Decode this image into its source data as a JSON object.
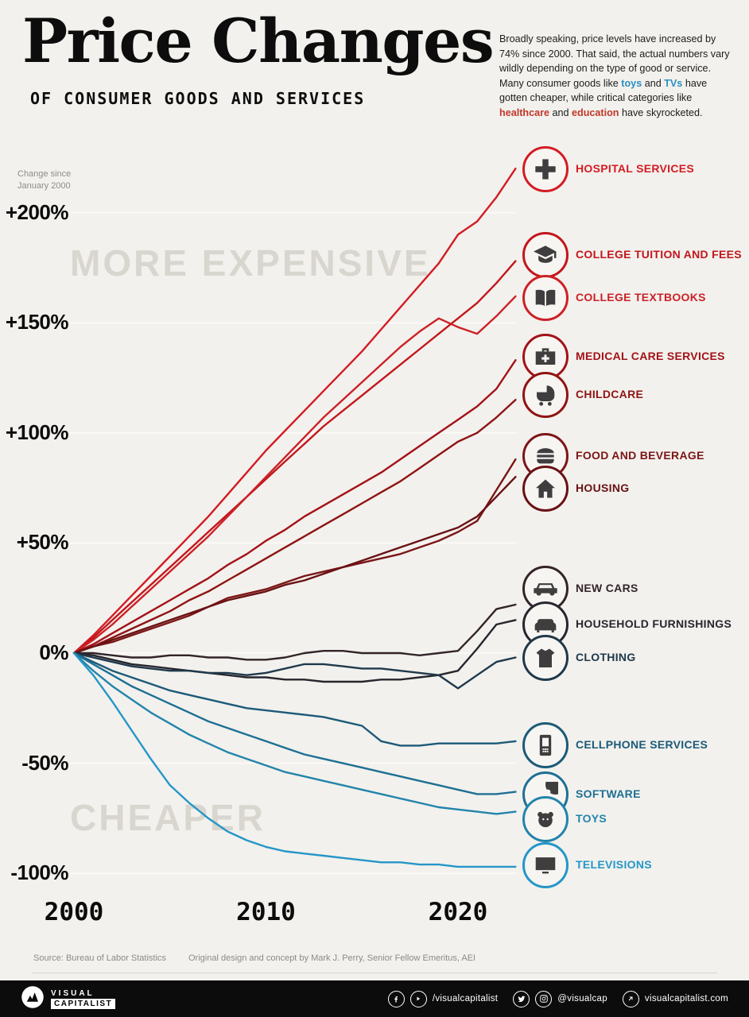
{
  "page": {
    "background": "#f2f1ed"
  },
  "header": {
    "title": "Price Changes",
    "subtitle": "OF CONSUMER GOODS AND SERVICES",
    "intro_segments": [
      {
        "text": "Broadly speaking, price levels have increased by 74% since 2000. That said, the actual numbers vary wildly depending on the type of good or service. Many consumer goods like "
      },
      {
        "text": "toys",
        "color": "#2a8fc2"
      },
      {
        "text": " and "
      },
      {
        "text": "TVs",
        "color": "#2a8fc2"
      },
      {
        "text": " have gotten cheaper, while critical categories like "
      },
      {
        "text": "healthcare",
        "color": "#c0382b"
      },
      {
        "text": " and "
      },
      {
        "text": "education",
        "color": "#c0382b"
      },
      {
        "text": " have skyrocketed."
      }
    ]
  },
  "chart": {
    "axis_note": "Change since\nJanuary 2000",
    "watermark_more": "MORE EXPENSIVE",
    "watermark_less": "CHEAPER"
  },
  "chart_data": {
    "type": "line",
    "title": "Price changes of consumer goods and services since January 2000",
    "ylabel": "Change since January 2000 (%)",
    "xlim": [
      2000,
      2023
    ],
    "ylim": [
      -100,
      230
    ],
    "grid": true,
    "legend_position": "right",
    "x": [
      2000,
      2001,
      2002,
      2003,
      2004,
      2005,
      2006,
      2007,
      2008,
      2009,
      2010,
      2011,
      2012,
      2013,
      2014,
      2015,
      2016,
      2017,
      2018,
      2019,
      2020,
      2021,
      2022,
      2023
    ],
    "y_ticks": [
      {
        "label": "+200%",
        "value": 200
      },
      {
        "label": "+150%",
        "value": 150
      },
      {
        "label": "+100%",
        "value": 100
      },
      {
        "label": "+50%",
        "value": 50
      },
      {
        "label": "0%",
        "value": 0
      },
      {
        "label": "-50%",
        "value": -50
      },
      {
        "label": "-100%",
        "value": -100
      }
    ],
    "x_ticks": [
      {
        "label": "2000",
        "value": 2000
      },
      {
        "label": "2010",
        "value": 2010
      },
      {
        "label": "2020",
        "value": 2020
      }
    ],
    "series": [
      {
        "id": "hospital-services",
        "name": "HOSPITAL SERVICES",
        "color": "#d31c23",
        "values": [
          0,
          8,
          17,
          26,
          35,
          44,
          53,
          62,
          72,
          82,
          92,
          101,
          110,
          119,
          128,
          137,
          147,
          157,
          167,
          177,
          190,
          196,
          207,
          220
        ]
      },
      {
        "id": "college-tuition",
        "name": "COLLEGE TUITION AND FEES",
        "color": "#c3161c",
        "values": [
          0,
          7,
          15,
          23,
          31,
          39,
          47,
          55,
          63,
          71,
          79,
          87,
          95,
          103,
          110,
          117,
          124,
          131,
          138,
          145,
          152,
          159,
          168,
          178
        ]
      },
      {
        "id": "college-textbooks",
        "name": "COLLEGE TEXTBOOKS",
        "color": "#cc2127",
        "values": [
          0,
          6,
          13,
          21,
          29,
          37,
          45,
          53,
          62,
          71,
          80,
          89,
          98,
          107,
          115,
          123,
          131,
          139,
          146,
          152,
          148,
          145,
          153,
          162
        ]
      },
      {
        "id": "medical-care-services",
        "name": "MEDICAL CARE SERVICES",
        "color": "#a31218",
        "values": [
          0,
          4,
          9,
          14,
          19,
          24,
          29,
          34,
          40,
          45,
          51,
          56,
          62,
          67,
          72,
          77,
          82,
          88,
          94,
          100,
          106,
          112,
          120,
          133
        ]
      },
      {
        "id": "childcare",
        "name": "CHILDCARE",
        "color": "#8f1414",
        "values": [
          0,
          3,
          7,
          11,
          15,
          19,
          24,
          28,
          33,
          38,
          43,
          48,
          53,
          58,
          63,
          68,
          73,
          78,
          84,
          90,
          96,
          100,
          107,
          115
        ]
      },
      {
        "id": "food-and-beverage",
        "name": "FOOD AND BEVERAGE",
        "color": "#7c1517",
        "values": [
          0,
          3,
          5,
          8,
          11,
          14,
          17,
          21,
          25,
          27,
          29,
          32,
          35,
          37,
          39,
          41,
          43,
          45,
          48,
          51,
          55,
          60,
          74,
          88
        ]
      },
      {
        "id": "housing",
        "name": "HOUSING",
        "color": "#691114",
        "values": [
          0,
          3,
          6,
          9,
          12,
          15,
          18,
          21,
          24,
          26,
          28,
          31,
          33,
          36,
          39,
          42,
          45,
          48,
          51,
          54,
          57,
          62,
          71,
          80
        ]
      },
      {
        "id": "new-cars",
        "name": "NEW CARS",
        "color": "#33242a",
        "values": [
          0,
          0,
          -1,
          -2,
          -2,
          -1,
          -1,
          -2,
          -2,
          -3,
          -3,
          -2,
          0,
          1,
          1,
          0,
          0,
          0,
          -1,
          0,
          1,
          10,
          20,
          22
        ]
      },
      {
        "id": "household-furnishings",
        "name": "HOUSEHOLD FURNISHINGS",
        "color": "#27262e",
        "values": [
          0,
          -1,
          -3,
          -5,
          -6,
          -7,
          -8,
          -9,
          -10,
          -11,
          -11,
          -12,
          -12,
          -13,
          -13,
          -13,
          -12,
          -12,
          -11,
          -10,
          -8,
          2,
          13,
          15
        ]
      },
      {
        "id": "clothing",
        "name": "CLOTHING",
        "color": "#20394b",
        "values": [
          0,
          -2,
          -4,
          -6,
          -7,
          -8,
          -8,
          -9,
          -9,
          -10,
          -9,
          -7,
          -5,
          -5,
          -6,
          -7,
          -7,
          -8,
          -9,
          -10,
          -16,
          -10,
          -4,
          -2
        ]
      },
      {
        "id": "cellphone-services",
        "name": "CELLPHONE SERVICES",
        "color": "#1c5a78",
        "values": [
          0,
          -4,
          -8,
          -11,
          -14,
          -17,
          -19,
          -21,
          -23,
          -25,
          -26,
          -27,
          -28,
          -29,
          -31,
          -33,
          -40,
          -42,
          -42,
          -41,
          -41,
          -41,
          -41,
          -40
        ]
      },
      {
        "id": "software",
        "name": "SOFTWARE",
        "color": "#1e6f94",
        "values": [
          0,
          -5,
          -10,
          -15,
          -19,
          -23,
          -27,
          -31,
          -34,
          -37,
          -40,
          -43,
          -46,
          -48,
          -50,
          -52,
          -54,
          -56,
          -58,
          -60,
          -62,
          -64,
          -64,
          -63
        ]
      },
      {
        "id": "toys",
        "name": "TOYS",
        "color": "#2384ab",
        "values": [
          0,
          -8,
          -15,
          -21,
          -27,
          -32,
          -37,
          -41,
          -45,
          -48,
          -51,
          -54,
          -56,
          -58,
          -60,
          -62,
          -64,
          -66,
          -68,
          -70,
          -71,
          -72,
          -73,
          -72
        ]
      },
      {
        "id": "televisions",
        "name": "TELEVISIONS",
        "color": "#2596c8",
        "values": [
          0,
          -10,
          -22,
          -35,
          -48,
          -60,
          -68,
          -75,
          -81,
          -85,
          -88,
          -90,
          -91,
          -92,
          -93,
          -94,
          -95,
          -95,
          -96,
          -96,
          -97,
          -97,
          -97,
          -97
        ]
      }
    ]
  },
  "footer": {
    "source": "Source: Bureau of Labor Statistics",
    "credit": "Original design and concept by Mark J. Perry, Senior Fellow Emeritus, AEI"
  },
  "bottom_bar": {
    "brand_line1": "VISUAL",
    "brand_line2": "CAPITALIST",
    "facebook_youtube_handle": "/visualcapitalist",
    "twitter_instagram_handle": "@visualcap",
    "website": "visualcapitalist.com"
  }
}
